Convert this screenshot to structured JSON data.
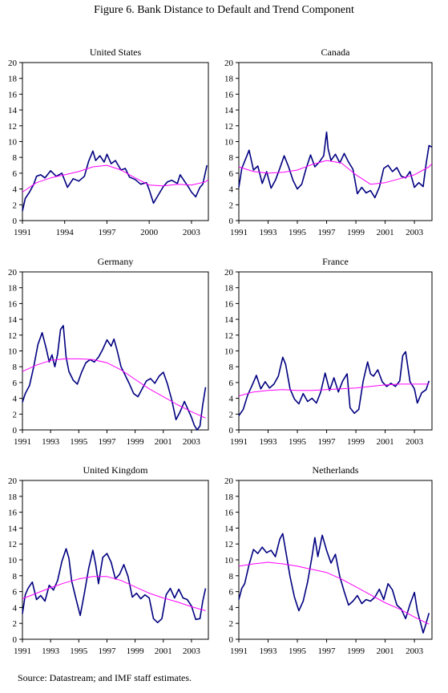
{
  "figure_title": "Figure 6. Bank Distance to Default and Trend Component",
  "source": "Source:  Datastream; and IMF staff estimates.",
  "colors": {
    "series": "#000080",
    "trend": "#ff00ff",
    "axis": "#000000"
  },
  "chart_data": [
    {
      "type": "line",
      "title": "United States",
      "ylim": [
        0,
        20
      ],
      "yticks": [
        "0",
        "2",
        "4",
        "6",
        "8",
        "10",
        "12",
        "14",
        "16",
        "18",
        "20"
      ],
      "xlim": [
        1991,
        2004.2
      ],
      "xticks": [
        "1991",
        "1994",
        "1997",
        "2000",
        "2003"
      ],
      "series": [
        {
          "role": "distance-to-default",
          "x": [
            1991.0,
            1991.2,
            1991.5,
            1991.8,
            1992.0,
            1992.3,
            1992.6,
            1993.0,
            1993.4,
            1993.8,
            1994.2,
            1994.6,
            1995.0,
            1995.4,
            1995.7,
            1996.0,
            1996.2,
            1996.5,
            1996.8,
            1997.0,
            1997.3,
            1997.6,
            1998.0,
            1998.3,
            1998.6,
            1999.0,
            1999.4,
            1999.8,
            2000.0,
            2000.3,
            2000.6,
            2001.0,
            2001.3,
            2001.6,
            2002.0,
            2002.2,
            2002.5,
            2002.8,
            2003.0,
            2003.3,
            2003.6,
            2003.8,
            2004.0,
            2004.1
          ],
          "y": [
            1.2,
            2.8,
            3.6,
            4.6,
            5.6,
            5.8,
            5.4,
            6.3,
            5.6,
            6.0,
            4.2,
            5.3,
            5.0,
            5.6,
            7.5,
            8.8,
            7.6,
            8.2,
            7.4,
            8.4,
            7.2,
            7.6,
            6.4,
            6.6,
            5.5,
            5.2,
            4.6,
            4.8,
            3.9,
            2.2,
            3.1,
            4.3,
            4.9,
            5.1,
            4.7,
            5.8,
            5.0,
            4.2,
            3.6,
            3.0,
            4.2,
            4.6,
            6.2,
            7.0
          ]
        },
        {
          "role": "trend",
          "x": [
            1991,
            1992,
            1993,
            1994,
            1995,
            1996,
            1997,
            1998,
            1999,
            2000,
            2001,
            2002,
            2003,
            2004,
            2004.2
          ],
          "y": [
            3.6,
            4.8,
            5.4,
            5.8,
            6.2,
            6.8,
            7.0,
            6.4,
            5.4,
            4.5,
            4.4,
            4.6,
            4.5,
            4.9,
            5.2
          ]
        }
      ]
    },
    {
      "type": "line",
      "title": "Canada",
      "ylim": [
        0,
        20
      ],
      "yticks": [
        "0",
        "2",
        "4",
        "6",
        "8",
        "10",
        "12",
        "14",
        "16",
        "18",
        "20"
      ],
      "xlim": [
        1991,
        2004.2
      ],
      "xticks": [
        "1991",
        "1993",
        "1995",
        "1997",
        "1999",
        "2001",
        "2003"
      ],
      "series": [
        {
          "role": "distance-to-default",
          "x": [
            1991.0,
            1991.2,
            1991.4,
            1991.7,
            1992.0,
            1992.3,
            1992.6,
            1992.9,
            1993.2,
            1993.5,
            1993.8,
            1994.1,
            1994.4,
            1994.7,
            1995.0,
            1995.3,
            1995.6,
            1995.9,
            1996.2,
            1996.5,
            1996.8,
            1997.0,
            1997.1,
            1997.3,
            1997.6,
            1997.9,
            1998.2,
            1998.5,
            1998.8,
            1999.1,
            1999.4,
            1999.7,
            2000.0,
            2000.3,
            2000.6,
            2000.9,
            2001.2,
            2001.5,
            2001.8,
            2002.1,
            2002.4,
            2002.7,
            2003.0,
            2003.3,
            2003.6,
            2003.8,
            2004.0,
            2004.2
          ],
          "y": [
            4.2,
            6.6,
            7.5,
            8.9,
            6.4,
            6.9,
            4.7,
            6.2,
            4.1,
            5.1,
            6.6,
            8.2,
            6.8,
            5.1,
            4.0,
            4.6,
            6.6,
            8.3,
            6.8,
            7.4,
            8.2,
            11.2,
            9.1,
            7.6,
            8.4,
            7.3,
            8.5,
            7.4,
            6.5,
            3.4,
            4.2,
            3.5,
            3.8,
            2.9,
            4.2,
            6.6,
            7.0,
            6.2,
            6.7,
            5.6,
            5.4,
            6.2,
            4.2,
            4.8,
            4.3,
            7.2,
            9.5,
            9.3
          ]
        },
        {
          "role": "trend",
          "x": [
            1991,
            1992,
            1993,
            1994,
            1995,
            1996,
            1997,
            1998,
            1999,
            2000,
            2001,
            2002,
            2003,
            2004,
            2004.2
          ],
          "y": [
            6.8,
            6.2,
            6.0,
            6.1,
            6.4,
            7.1,
            7.6,
            7.3,
            5.8,
            4.6,
            4.8,
            5.3,
            5.8,
            6.8,
            7.2
          ]
        }
      ]
    },
    {
      "type": "line",
      "title": "Germany",
      "ylim": [
        0,
        20
      ],
      "yticks": [
        "0",
        "2",
        "4",
        "6",
        "8",
        "10",
        "12",
        "14",
        "16",
        "18",
        "20"
      ],
      "xlim": [
        1991,
        2004.2
      ],
      "xticks": [
        "1991",
        "1993",
        "1995",
        "1997",
        "1999",
        "2001",
        "2003"
      ],
      "series": [
        {
          "role": "distance-to-default",
          "x": [
            1991.0,
            1991.2,
            1991.5,
            1991.8,
            1992.1,
            1992.4,
            1992.7,
            1992.9,
            1993.1,
            1993.3,
            1993.5,
            1993.7,
            1993.9,
            1994.1,
            1994.3,
            1994.6,
            1994.9,
            1995.2,
            1995.5,
            1995.8,
            1996.1,
            1996.4,
            1996.7,
            1997.0,
            1997.3,
            1997.5,
            1997.7,
            1998.0,
            1998.3,
            1998.6,
            1998.9,
            1999.2,
            1999.5,
            1999.8,
            2000.1,
            2000.4,
            2000.7,
            2001.0,
            2001.3,
            2001.6,
            2001.9,
            2002.2,
            2002.5,
            2002.8,
            2003.0,
            2003.2,
            2003.4,
            2003.6,
            2003.8,
            2004.0
          ],
          "y": [
            3.5,
            4.6,
            5.6,
            8.0,
            10.8,
            12.3,
            10.2,
            8.6,
            9.5,
            8.0,
            9.6,
            12.7,
            13.2,
            9.2,
            7.4,
            6.3,
            5.8,
            7.3,
            8.5,
            8.9,
            8.6,
            9.2,
            10.2,
            11.4,
            10.6,
            11.5,
            10.2,
            8.0,
            6.9,
            5.8,
            4.6,
            4.2,
            5.2,
            6.2,
            6.5,
            5.9,
            6.8,
            7.3,
            5.8,
            3.8,
            1.3,
            2.3,
            3.6,
            2.4,
            1.6,
            0.6,
            0.0,
            0.5,
            3.2,
            5.4
          ]
        },
        {
          "role": "trend",
          "x": [
            1991,
            1992,
            1993,
            1994,
            1995,
            1996,
            1997,
            1998,
            1999,
            2000,
            2001,
            2002,
            2003,
            2004
          ],
          "y": [
            7.4,
            8.2,
            8.8,
            9.0,
            9.0,
            8.9,
            8.5,
            7.6,
            6.4,
            5.2,
            4.2,
            3.2,
            2.3,
            1.5
          ]
        }
      ]
    },
    {
      "type": "line",
      "title": "France",
      "ylim": [
        0,
        20
      ],
      "yticks": [
        "0",
        "2",
        "4",
        "6",
        "8",
        "10",
        "12",
        "14",
        "16",
        "18",
        "20"
      ],
      "xlim": [
        1991,
        2004.2
      ],
      "xticks": [
        "1991",
        "1993",
        "1995",
        "1997",
        "1999",
        "2001",
        "2003"
      ],
      "series": [
        {
          "role": "distance-to-default",
          "x": [
            1991.0,
            1991.3,
            1991.6,
            1991.9,
            1992.2,
            1992.5,
            1992.8,
            1993.1,
            1993.4,
            1993.7,
            1994.0,
            1994.2,
            1994.5,
            1994.8,
            1995.1,
            1995.4,
            1995.7,
            1996.0,
            1996.3,
            1996.6,
            1996.9,
            1997.2,
            1997.5,
            1997.8,
            1998.1,
            1998.4,
            1998.6,
            1998.9,
            1999.2,
            1999.5,
            1999.8,
            2000.0,
            2000.2,
            2000.5,
            2000.8,
            2001.1,
            2001.4,
            2001.7,
            2002.0,
            2002.2,
            2002.4,
            2002.7,
            2003.0,
            2003.2,
            2003.5,
            2003.8,
            2004.0
          ],
          "y": [
            1.8,
            2.6,
            4.4,
            5.6,
            6.9,
            5.2,
            6.1,
            5.3,
            5.8,
            6.8,
            9.2,
            8.3,
            5.2,
            3.9,
            3.3,
            4.6,
            3.6,
            4.0,
            3.4,
            4.8,
            7.2,
            5.0,
            6.6,
            4.8,
            6.2,
            7.1,
            2.8,
            2.1,
            2.6,
            6.2,
            8.6,
            7.1,
            6.8,
            7.6,
            6.1,
            5.5,
            5.9,
            5.5,
            6.2,
            9.4,
            9.9,
            6.1,
            5.2,
            3.4,
            4.7,
            5.1,
            6.2
          ]
        },
        {
          "role": "trend",
          "x": [
            1991,
            1992,
            1993,
            1994,
            1995,
            1996,
            1997,
            1998,
            1999,
            2000,
            2001,
            2002,
            2003,
            2004
          ],
          "y": [
            4.3,
            4.8,
            5.0,
            5.1,
            5.0,
            5.0,
            5.1,
            5.2,
            5.3,
            5.5,
            5.7,
            5.8,
            5.8,
            5.8
          ]
        }
      ]
    },
    {
      "type": "line",
      "title": "United Kingdom",
      "ylim": [
        0,
        20
      ],
      "yticks": [
        "0",
        "2",
        "4",
        "6",
        "8",
        "10",
        "12",
        "14",
        "16",
        "18",
        "20"
      ],
      "xlim": [
        1991,
        2004.2
      ],
      "xticks": [
        "1991",
        "1993",
        "1995",
        "1997",
        "1999",
        "2001",
        "2003"
      ],
      "series": [
        {
          "role": "distance-to-default",
          "x": [
            1991.0,
            1991.2,
            1991.4,
            1991.7,
            1992.0,
            1992.3,
            1992.6,
            1992.9,
            1993.2,
            1993.5,
            1993.8,
            1994.1,
            1994.3,
            1994.5,
            1994.8,
            1995.1,
            1995.4,
            1995.7,
            1996.0,
            1996.2,
            1996.4,
            1996.7,
            1997.0,
            1997.3,
            1997.6,
            1997.9,
            1998.2,
            1998.5,
            1998.8,
            1999.1,
            1999.4,
            1999.7,
            2000.0,
            2000.3,
            2000.6,
            2000.9,
            2001.2,
            2001.5,
            2001.8,
            2002.1,
            2002.4,
            2002.7,
            2003.0,
            2003.3,
            2003.6,
            2003.8,
            2004.0
          ],
          "y": [
            3.2,
            5.6,
            6.4,
            7.2,
            5.0,
            5.5,
            4.8,
            6.8,
            6.2,
            7.4,
            9.8,
            11.4,
            10.2,
            7.3,
            5.1,
            3.0,
            5.8,
            8.9,
            11.2,
            9.4,
            7.0,
            10.3,
            10.8,
            9.7,
            7.6,
            8.2,
            9.4,
            7.9,
            5.3,
            5.8,
            5.1,
            5.6,
            5.2,
            2.6,
            2.1,
            2.6,
            5.6,
            6.4,
            5.2,
            6.3,
            5.2,
            5.0,
            4.2,
            2.5,
            2.6,
            4.8,
            6.4
          ]
        },
        {
          "role": "trend",
          "x": [
            1991,
            1992,
            1993,
            1994,
            1995,
            1996,
            1997,
            1998,
            1999,
            2000,
            2001,
            2002,
            2003,
            2004
          ],
          "y": [
            5.1,
            5.8,
            6.5,
            7.1,
            7.6,
            7.9,
            7.9,
            7.4,
            6.6,
            5.8,
            5.2,
            4.7,
            4.1,
            3.6
          ]
        }
      ]
    },
    {
      "type": "line",
      "title": "Netherlands",
      "ylim": [
        0,
        20
      ],
      "yticks": [
        "0",
        "2",
        "4",
        "6",
        "8",
        "10",
        "12",
        "14",
        "16",
        "18",
        "20"
      ],
      "xlim": [
        1991,
        2004.2
      ],
      "xticks": [
        "1991",
        "1993",
        "1995",
        "1997",
        "1999",
        "2001",
        "2003"
      ],
      "series": [
        {
          "role": "distance-to-default",
          "x": [
            1991.0,
            1991.2,
            1991.4,
            1991.7,
            1992.0,
            1992.3,
            1992.6,
            1992.9,
            1993.2,
            1993.5,
            1993.8,
            1994.0,
            1994.2,
            1994.5,
            1994.8,
            1995.1,
            1995.4,
            1995.7,
            1996.0,
            1996.2,
            1996.4,
            1996.7,
            1997.0,
            1997.3,
            1997.6,
            1997.9,
            1998.2,
            1998.5,
            1998.8,
            1999.1,
            1999.4,
            1999.7,
            2000.0,
            2000.3,
            2000.6,
            2000.9,
            2001.2,
            2001.5,
            2001.8,
            2002.1,
            2002.4,
            2002.7,
            2003.0,
            2003.2,
            2003.4,
            2003.6,
            2003.8,
            2004.0
          ],
          "y": [
            5.0,
            6.4,
            7.0,
            9.4,
            11.3,
            10.8,
            11.6,
            10.9,
            11.2,
            10.4,
            12.6,
            13.3,
            11.2,
            7.9,
            5.3,
            3.6,
            4.8,
            7.2,
            10.4,
            12.8,
            10.4,
            13.1,
            11.2,
            9.6,
            10.7,
            7.9,
            6.0,
            4.3,
            4.8,
            5.5,
            4.5,
            5.0,
            4.8,
            5.3,
            6.3,
            5.0,
            7.0,
            6.2,
            4.3,
            3.8,
            2.6,
            4.4,
            5.9,
            3.6,
            2.2,
            0.8,
            2.0,
            3.3
          ]
        },
        {
          "role": "trend",
          "x": [
            1991,
            1992,
            1993,
            1994,
            1995,
            1996,
            1997,
            1998,
            1999,
            2000,
            2001,
            2002,
            2003,
            2004
          ],
          "y": [
            9.2,
            9.5,
            9.7,
            9.5,
            9.2,
            8.8,
            8.4,
            7.6,
            6.6,
            5.6,
            4.6,
            3.8,
            2.8,
            1.9
          ]
        }
      ]
    }
  ]
}
